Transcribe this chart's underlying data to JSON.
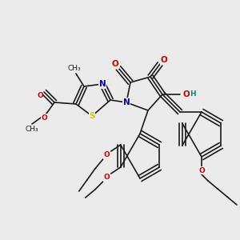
{
  "bg_color": "#ebebeb",
  "line_color": "#1a1a1a",
  "bond_width": 1.2,
  "atom_colors": {
    "N": "#0000cc",
    "O": "#cc0000",
    "S": "#cccc00",
    "H": "#008b8b",
    "C": "#1a1a1a"
  },
  "font_size": 7.5,
  "font_size_small": 6.5
}
